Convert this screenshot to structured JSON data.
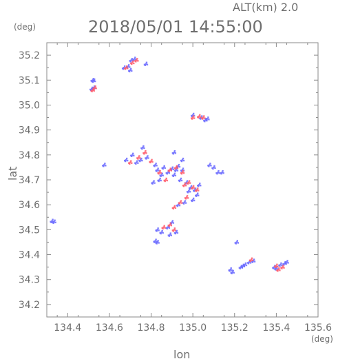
{
  "header": {
    "altitude_label": "ALT(km) 2.0",
    "timestamp": "2018/05/01 14:55:00",
    "y_unit": "(deg)",
    "x_unit": "(deg)"
  },
  "axes": {
    "xlabel": "lon",
    "ylabel": "lat",
    "xlim": [
      134.3,
      135.6
    ],
    "ylim": [
      34.15,
      35.25
    ],
    "xticks": [
      "134.4",
      "134.6",
      "134.8",
      "135.0",
      "135.2",
      "135.4",
      "135.6"
    ],
    "yticks": [
      "35.2",
      "35.1",
      "35.0",
      "34.9",
      "34.8",
      "34.7",
      "34.6",
      "34.5",
      "34.4",
      "34.3",
      "34.2"
    ]
  },
  "colors": {
    "approach": "#6a6aff",
    "recede": "#ff5a6a",
    "frame": "#8a8a8a",
    "text": "#6e6e6e"
  },
  "chart_data": {
    "type": "scatter",
    "xlabel": "lon",
    "ylabel": "lat",
    "xlim": [
      134.3,
      135.6
    ],
    "ylim": [
      34.15,
      35.25
    ],
    "grid": false,
    "series": [
      {
        "color": "blue",
        "points": [
          [
            134.325,
            34.535
          ],
          [
            134.335,
            34.532
          ],
          [
            134.52,
            35.1
          ],
          [
            134.525,
            35.098
          ],
          [
            134.515,
            35.065
          ],
          [
            134.525,
            35.07
          ],
          [
            134.575,
            34.76
          ],
          [
            134.67,
            35.15
          ],
          [
            134.69,
            35.155
          ],
          [
            134.705,
            35.18
          ],
          [
            134.72,
            35.185
          ],
          [
            134.7,
            35.14
          ],
          [
            134.775,
            35.165
          ],
          [
            134.68,
            34.78
          ],
          [
            134.71,
            34.8
          ],
          [
            134.73,
            34.77
          ],
          [
            134.75,
            34.78
          ],
          [
            134.76,
            34.83
          ],
          [
            134.78,
            34.79
          ],
          [
            134.82,
            34.76
          ],
          [
            134.83,
            34.74
          ],
          [
            134.85,
            34.72
          ],
          [
            134.84,
            34.7
          ],
          [
            134.81,
            34.69
          ],
          [
            134.86,
            34.75
          ],
          [
            134.88,
            34.73
          ],
          [
            134.9,
            34.745
          ],
          [
            134.92,
            34.74
          ],
          [
            134.93,
            34.755
          ],
          [
            134.95,
            34.74
          ],
          [
            134.91,
            34.72
          ],
          [
            134.94,
            34.7
          ],
          [
            134.97,
            34.69
          ],
          [
            134.99,
            34.67
          ],
          [
            135.01,
            34.66
          ],
          [
            135.02,
            34.64
          ],
          [
            135.0,
            34.62
          ],
          [
            134.96,
            34.61
          ],
          [
            134.93,
            34.6
          ],
          [
            134.98,
            34.655
          ],
          [
            135.03,
            34.68
          ],
          [
            134.83,
            34.5
          ],
          [
            134.85,
            34.49
          ],
          [
            134.88,
            34.51
          ],
          [
            134.9,
            34.53
          ],
          [
            134.92,
            34.49
          ],
          [
            134.89,
            34.48
          ],
          [
            134.82,
            34.455
          ],
          [
            134.83,
            34.45
          ],
          [
            134.91,
            34.81
          ],
          [
            134.95,
            34.78
          ],
          [
            135.0,
            34.96
          ],
          [
            135.04,
            34.95
          ],
          [
            135.07,
            34.945
          ],
          [
            135.06,
            34.94
          ],
          [
            135.08,
            34.76
          ],
          [
            135.1,
            34.75
          ],
          [
            135.12,
            34.73
          ],
          [
            135.14,
            34.73
          ],
          [
            135.21,
            34.45
          ],
          [
            135.19,
            34.33
          ],
          [
            135.18,
            34.34
          ],
          [
            135.23,
            34.35
          ],
          [
            135.25,
            34.36
          ],
          [
            135.27,
            34.37
          ],
          [
            135.29,
            34.375
          ],
          [
            135.24,
            34.355
          ],
          [
            135.39,
            34.35
          ],
          [
            135.4,
            34.345
          ],
          [
            135.42,
            34.36
          ],
          [
            135.44,
            34.365
          ],
          [
            135.45,
            34.37
          ]
        ]
      },
      {
        "color": "red",
        "points": [
          [
            134.53,
            35.07
          ],
          [
            134.52,
            35.06
          ],
          [
            134.68,
            35.15
          ],
          [
            134.71,
            35.17
          ],
          [
            134.73,
            35.18
          ],
          [
            134.7,
            34.77
          ],
          [
            134.74,
            34.79
          ],
          [
            134.77,
            34.81
          ],
          [
            134.8,
            34.775
          ],
          [
            134.84,
            34.73
          ],
          [
            134.87,
            34.7
          ],
          [
            134.89,
            34.74
          ],
          [
            134.92,
            34.75
          ],
          [
            134.95,
            34.73
          ],
          [
            134.96,
            34.68
          ],
          [
            134.98,
            34.69
          ],
          [
            135.0,
            34.67
          ],
          [
            135.02,
            34.66
          ],
          [
            134.97,
            34.63
          ],
          [
            134.94,
            34.61
          ],
          [
            134.91,
            34.59
          ],
          [
            134.86,
            34.51
          ],
          [
            134.89,
            34.52
          ],
          [
            134.91,
            34.5
          ],
          [
            135.03,
            34.955
          ],
          [
            135.05,
            34.95
          ],
          [
            135.0,
            34.95
          ],
          [
            135.28,
            34.38
          ],
          [
            135.41,
            34.34
          ],
          [
            135.43,
            34.35
          ],
          [
            135.4,
            34.355
          ]
        ]
      }
    ]
  }
}
